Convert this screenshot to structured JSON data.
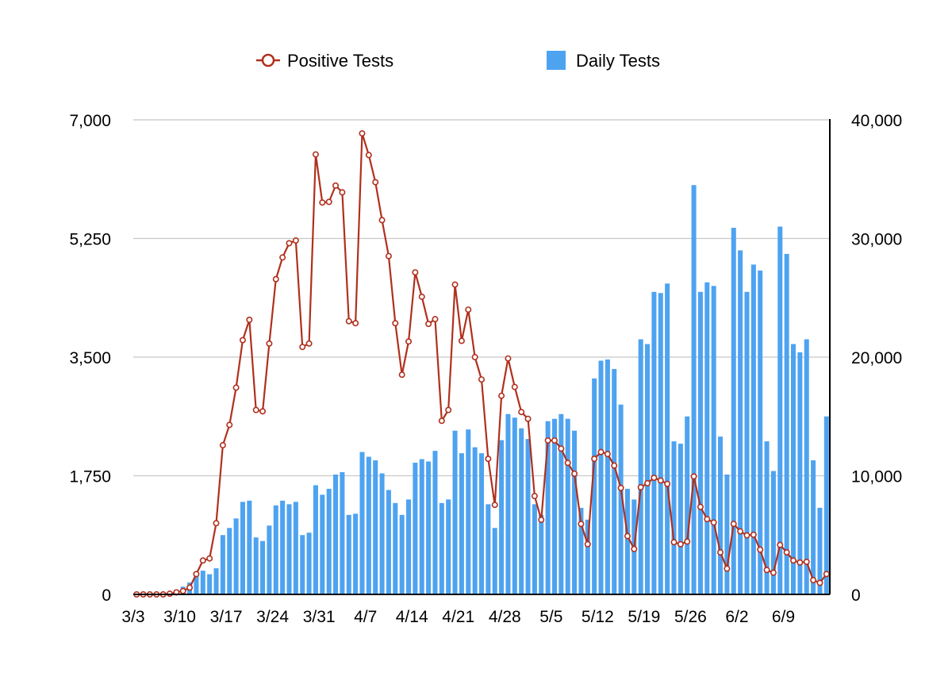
{
  "chart_data": {
    "type": "bar+line",
    "title": "",
    "legend": [
      {
        "name": "Positive Tests",
        "kind": "line-marker",
        "color": "#b0301e"
      },
      {
        "name": "Daily Tests",
        "kind": "bar",
        "color": "#4ea3f0"
      }
    ],
    "legend_position": "top-center",
    "x_start_date": "2020-03-03",
    "x_tick_labels": [
      "3/3",
      "3/10",
      "3/17",
      "3/24",
      "3/31",
      "4/7",
      "4/14",
      "4/21",
      "4/28",
      "5/5",
      "5/12",
      "5/19",
      "5/26",
      "6/2",
      "6/9"
    ],
    "y_left": {
      "label": "Positive Tests",
      "range": [
        0,
        7000
      ],
      "ticks": [
        "0",
        "1,750",
        "3,500",
        "5,250",
        "7,000"
      ],
      "tick_values": [
        0,
        1750,
        3500,
        5250,
        7000
      ]
    },
    "y_right": {
      "label": "Daily Tests",
      "range": [
        0,
        40000
      ],
      "ticks": [
        "0",
        "10,000",
        "20,000",
        "30,000",
        "40,000"
      ],
      "tick_values": [
        0,
        10000,
        20000,
        30000,
        40000
      ]
    },
    "grid": true,
    "series": [
      {
        "name": "Daily Tests",
        "axis": "right",
        "type": "bar",
        "values": [
          0,
          0,
          0,
          0,
          0,
          150,
          400,
          650,
          1000,
          1600,
          2000,
          1700,
          2200,
          5000,
          5600,
          6400,
          7800,
          7900,
          4800,
          4500,
          5800,
          7500,
          7900,
          7600,
          7800,
          5000,
          5200,
          9200,
          8400,
          8900,
          10100,
          10300,
          6700,
          6800,
          12000,
          11600,
          11300,
          10200,
          8800,
          7700,
          6700,
          8000,
          11100,
          11400,
          11200,
          12100,
          7700,
          8000,
          13800,
          11900,
          13900,
          12400,
          11900,
          7600,
          5600,
          13000,
          15200,
          14900,
          14000,
          13100,
          7600,
          6700,
          14600,
          14800,
          15200,
          14800,
          13800,
          7300,
          6300,
          18200,
          19700,
          19800,
          19000,
          16000,
          8900,
          8000,
          21500,
          21100,
          25500,
          25400,
          26200,
          12900,
          12700,
          15000,
          34500,
          25500,
          26300,
          26000,
          13300,
          10100,
          30900,
          29000,
          25500,
          27800,
          27300,
          12900,
          10400,
          31000,
          28700,
          21100,
          20400,
          21500,
          11300,
          7300,
          15000
        ]
      },
      {
        "name": "Positive Tests",
        "axis": "left",
        "type": "line",
        "values": [
          0,
          0,
          0,
          0,
          0,
          10,
          30,
          50,
          100,
          300,
          500,
          530,
          1050,
          2200,
          2500,
          3050,
          3750,
          4050,
          2720,
          2700,
          3700,
          4650,
          4970,
          5180,
          5220,
          3650,
          3700,
          6490,
          5780,
          5790,
          6030,
          5930,
          4030,
          4000,
          6800,
          6480,
          6080,
          5520,
          4990,
          4000,
          3240,
          3730,
          4750,
          4390,
          3990,
          4060,
          2560,
          2720,
          4570,
          3740,
          4200,
          3500,
          3170,
          2000,
          1320,
          2930,
          3480,
          3060,
          2690,
          2590,
          1450,
          1100,
          2270,
          2270,
          2150,
          1940,
          1780,
          1040,
          740,
          2000,
          2100,
          2070,
          1900,
          1570,
          860,
          670,
          1580,
          1640,
          1720,
          1680,
          1630,
          770,
          740,
          780,
          1740,
          1290,
          1110,
          1060,
          620,
          380,
          1040,
          930,
          870,
          880,
          660,
          360,
          320,
          730,
          620,
          500,
          470,
          480,
          210,
          170,
          300
        ]
      }
    ]
  }
}
